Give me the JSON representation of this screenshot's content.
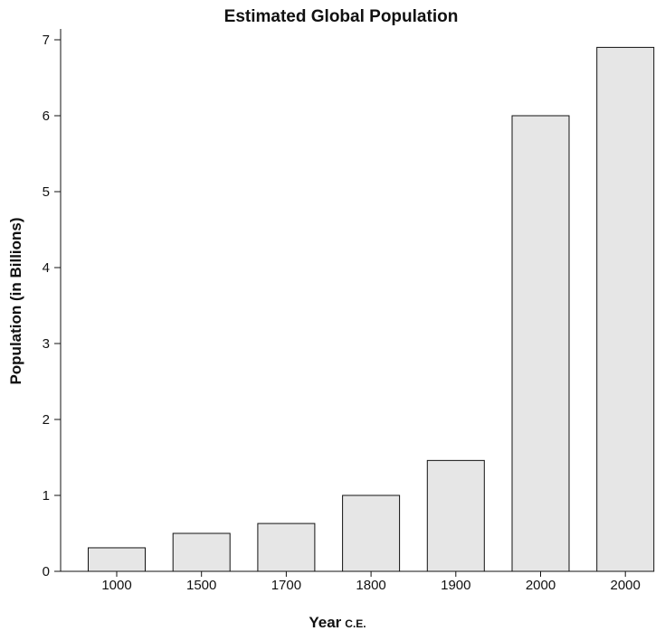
{
  "chart_data": {
    "type": "bar",
    "title": "Estimated Global Population",
    "xlabel": "Year",
    "xlabel_suffix": "C.E.",
    "ylabel": "Population (in Billions)",
    "categories": [
      "1000",
      "1500",
      "1700",
      "1800",
      "1900",
      "2000",
      "2000"
    ],
    "values": [
      0.31,
      0.5,
      0.63,
      1.0,
      1.46,
      6.0,
      6.9
    ],
    "ylim": [
      0,
      7
    ],
    "yticks": [
      "0",
      "1",
      "2",
      "3",
      "4",
      "5",
      "6",
      "7"
    ],
    "grid": false,
    "legend": "none",
    "colors": {
      "bar_fill": "#e6e6e6",
      "bar_stroke": "#111111"
    }
  }
}
